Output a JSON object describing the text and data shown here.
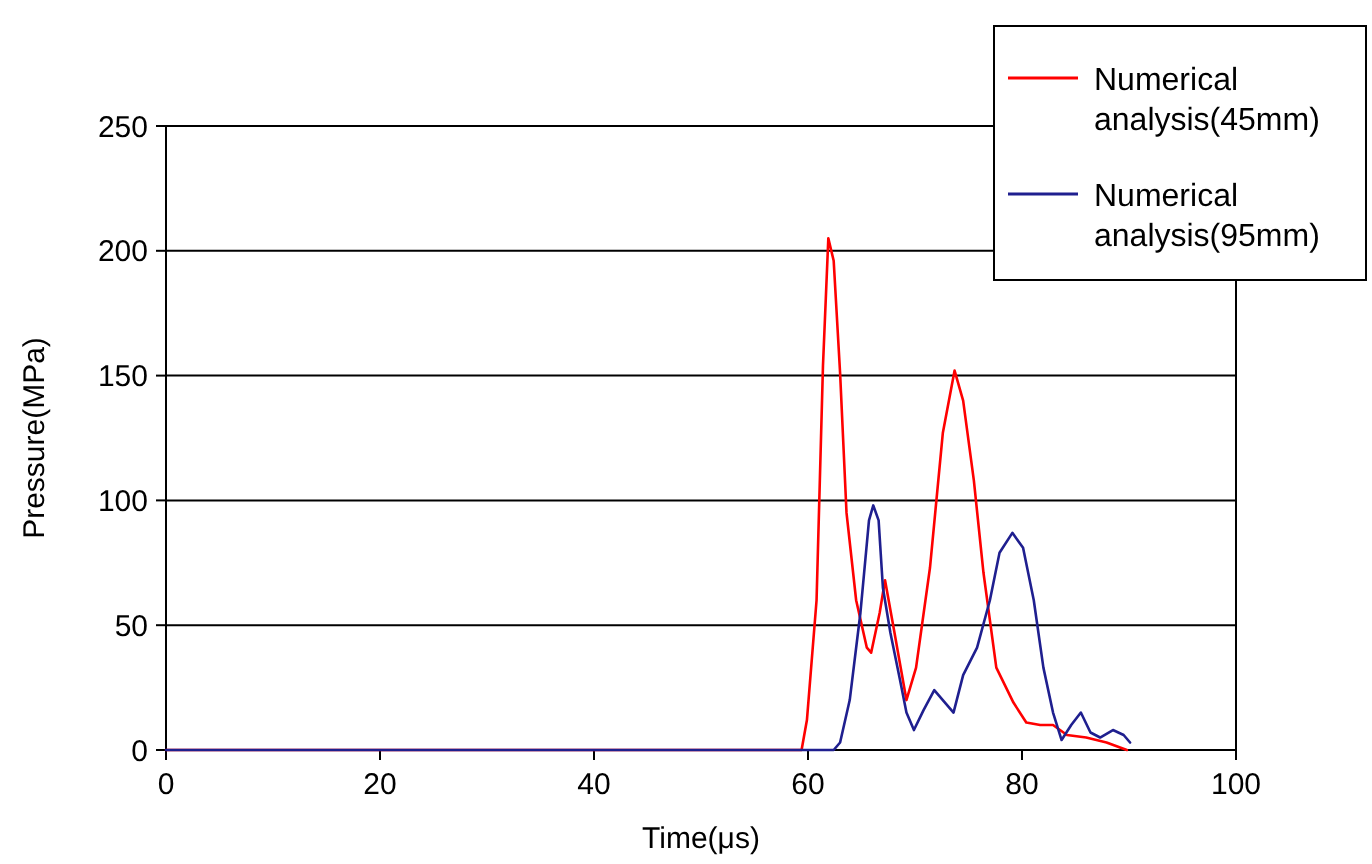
{
  "chart_data": {
    "type": "line",
    "xlabel": "Time(μs)",
    "ylabel": "Pressure(MPa)",
    "xlim": [
      0,
      100
    ],
    "ylim": [
      0,
      250
    ],
    "xticks": [
      0,
      20,
      40,
      60,
      80,
      100
    ],
    "yticks": [
      0,
      50,
      100,
      150,
      200,
      250
    ],
    "grid": "y",
    "legend": "top right",
    "line_style": "solid",
    "marker": "none",
    "series": [
      {
        "name": "Numerical analysis(45mm)",
        "color": "#ff0000",
        "x": [
          0,
          59.4,
          59.9,
          60.8,
          61.4,
          61.9,
          62.4,
          63.0,
          63.6,
          64.5,
          65.5,
          65.9,
          66.7,
          67.2,
          68.0,
          69.2,
          70.1,
          71.4,
          72.6,
          73.7,
          74.5,
          75.5,
          76.4,
          77.6,
          79.2,
          80.4,
          81.7,
          82.9,
          84.2,
          86.0,
          87.9,
          89.8
        ],
        "values": [
          0,
          0,
          12,
          60,
          154,
          205,
          196,
          151,
          95,
          60,
          41,
          39,
          55,
          68,
          49,
          20,
          33,
          73,
          127,
          152,
          140,
          108,
          71,
          33,
          19,
          11,
          10,
          10,
          6,
          5,
          3,
          0
        ]
      },
      {
        "name": "Numerical analysis(95mm)",
        "color": "#1f1f8f",
        "x": [
          0,
          62.4,
          63.0,
          63.9,
          64.9,
          65.7,
          66.1,
          66.6,
          67.0,
          67.7,
          68.6,
          69.2,
          69.9,
          70.8,
          71.8,
          72.6,
          73.6,
          74.5,
          75.8,
          77.0,
          77.9,
          79.1,
          80.1,
          81.1,
          82.0,
          82.9,
          83.7,
          84.6,
          85.5,
          86.4,
          87.3,
          88.5,
          89.5,
          90.1
        ],
        "values": [
          0,
          0,
          3,
          20,
          55,
          92,
          98,
          92,
          65,
          47,
          28,
          15,
          8,
          16,
          24,
          20,
          15,
          30,
          41,
          60,
          79,
          87,
          81,
          60,
          33,
          15,
          4,
          10,
          15,
          7,
          5,
          8,
          6,
          3
        ]
      }
    ]
  }
}
